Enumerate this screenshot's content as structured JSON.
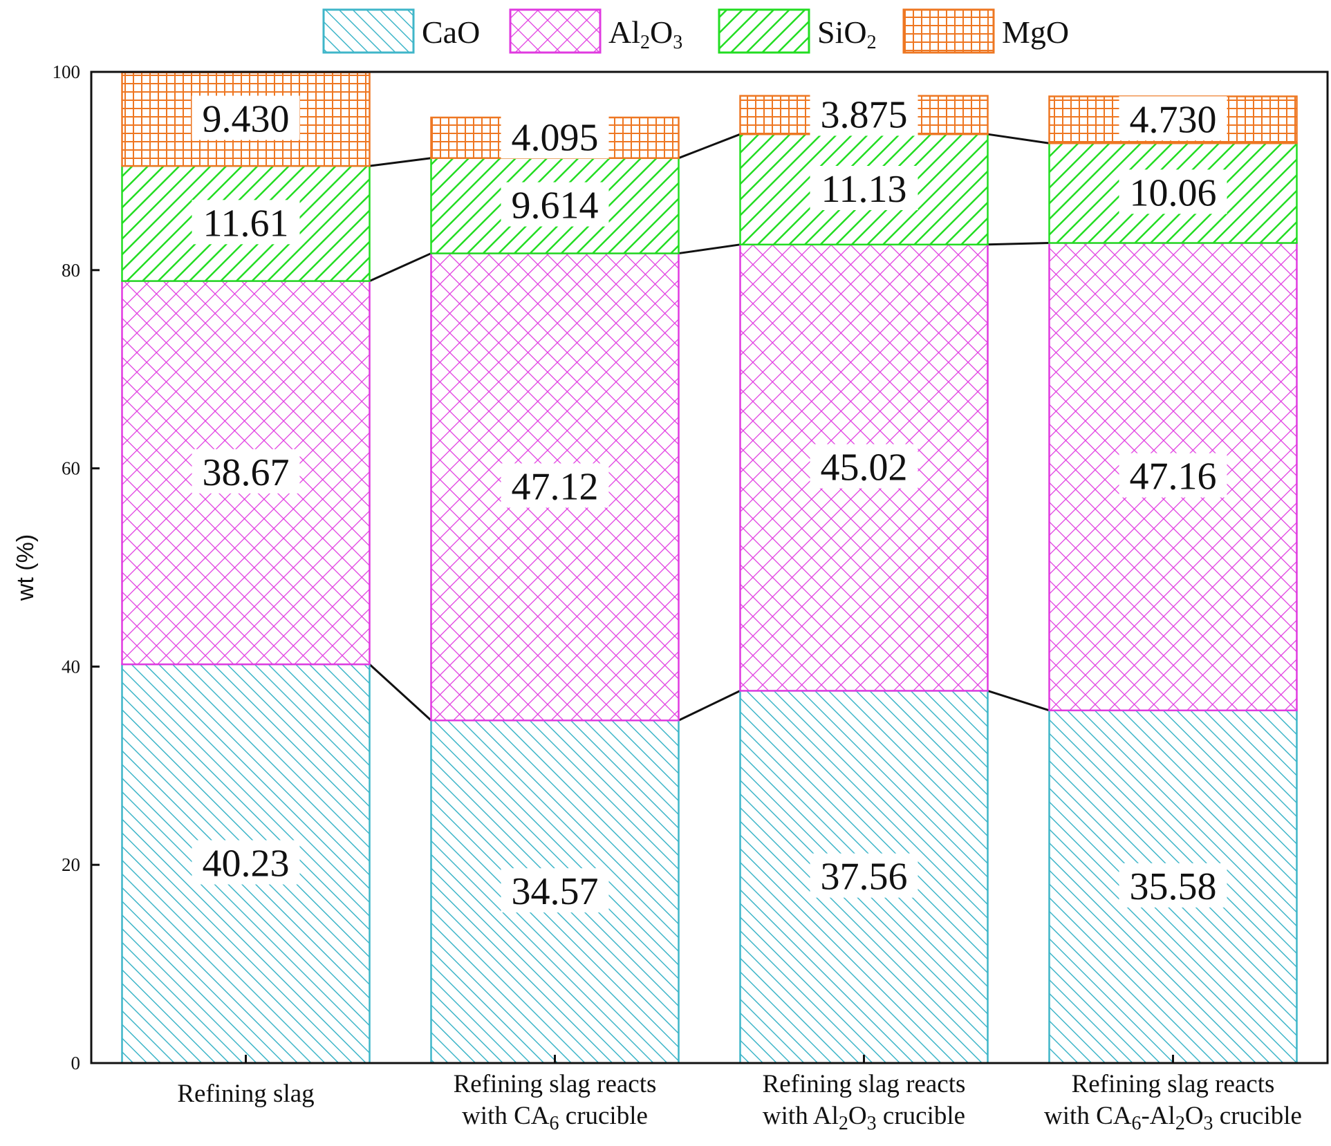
{
  "chart_data": {
    "type": "bar",
    "stacked": true,
    "title": "",
    "xlabel": "",
    "ylabel": "wt (%)",
    "ylim": [
      0,
      100
    ],
    "yticks": [
      0,
      20,
      40,
      60,
      80,
      100
    ],
    "categories": [
      [
        "Refining slag"
      ],
      [
        "Refining slag reacts",
        "with CA6 crucible"
      ],
      [
        "Refining slag reacts",
        "with Al2O3 crucible"
      ],
      [
        "Refining slag reacts",
        "with CA6-Al2O3 crucible"
      ]
    ],
    "series": [
      {
        "name": "CaO",
        "values": [
          40.23,
          34.57,
          37.56,
          35.58
        ],
        "labels": [
          "40.23",
          "34.57",
          "37.56",
          "35.58"
        ],
        "color": "#3fb6c9",
        "pattern": "diag-right"
      },
      {
        "name": "Al2O3",
        "values": [
          38.67,
          47.12,
          45.02,
          47.16
        ],
        "labels": [
          "38.67",
          "47.12",
          "45.02",
          "47.16"
        ],
        "color": "#e03ae0",
        "pattern": "cross"
      },
      {
        "name": "SiO2",
        "values": [
          11.61,
          9.614,
          11.13,
          10.06
        ],
        "labels": [
          "11.61",
          "9.614",
          "11.13",
          "10.06"
        ],
        "color": "#22dd22",
        "pattern": "diag-left"
      },
      {
        "name": "MgO",
        "values": [
          9.43,
          4.095,
          3.875,
          4.73
        ],
        "labels": [
          "9.430",
          "4.095",
          "3.875",
          "4.730"
        ],
        "color": "#ee7722",
        "pattern": "grid"
      }
    ],
    "connector_lines": true,
    "legend_position": "top-center",
    "grid": false
  }
}
